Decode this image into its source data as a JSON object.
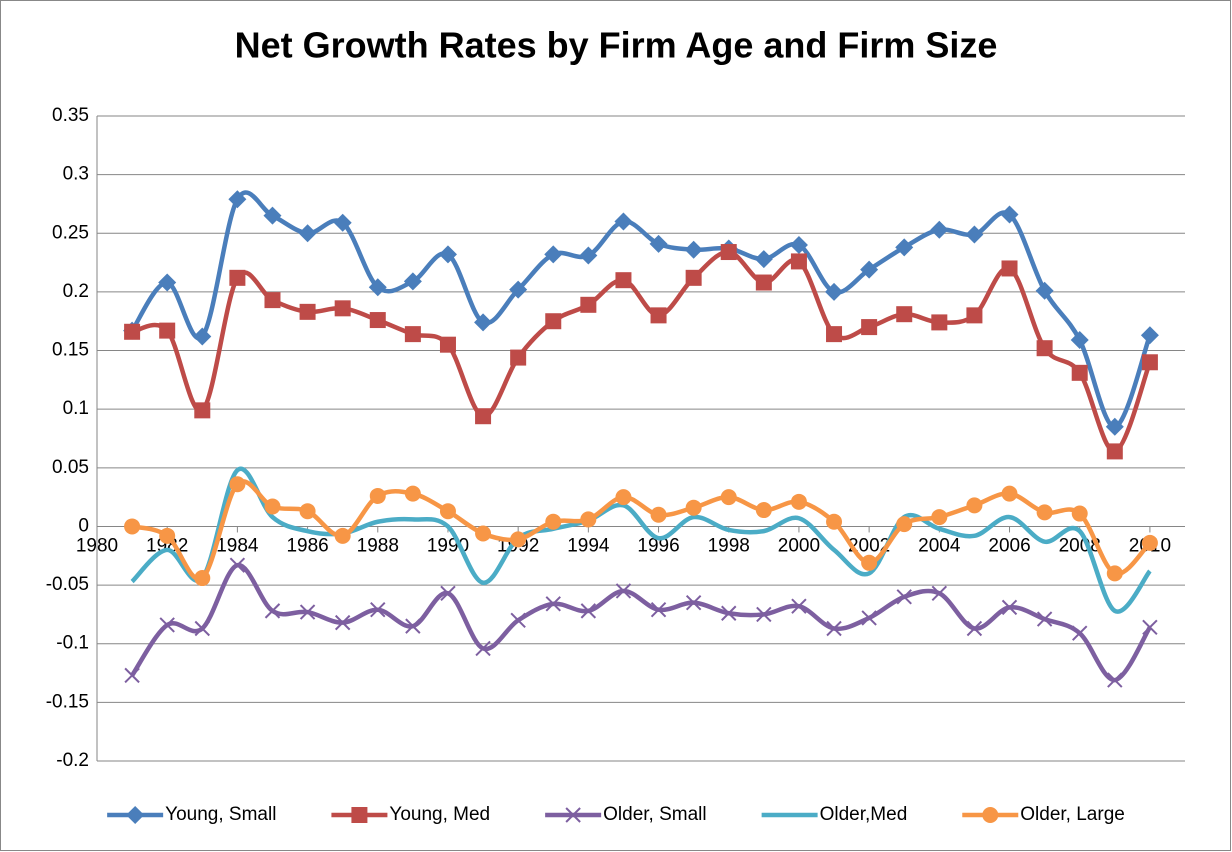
{
  "chart_data": {
    "type": "line",
    "title": "Net Growth Rates by Firm Age and Firm Size",
    "x": [
      1981,
      1982,
      1983,
      1984,
      1985,
      1986,
      1987,
      1988,
      1989,
      1990,
      1991,
      1992,
      1993,
      1994,
      1995,
      1996,
      1997,
      1998,
      1999,
      2000,
      2001,
      2002,
      2003,
      2004,
      2005,
      2006,
      2007,
      2008,
      2009,
      2010
    ],
    "series": [
      {
        "name": "Young, Small",
        "color": "#4a7ebb",
        "marker": "diamond",
        "values": [
          0.167,
          0.208,
          0.162,
          0.279,
          0.265,
          0.25,
          0.259,
          0.204,
          0.209,
          0.232,
          0.174,
          0.202,
          0.232,
          0.231,
          0.26,
          0.241,
          0.236,
          0.237,
          0.228,
          0.24,
          0.2,
          0.219,
          0.238,
          0.253,
          0.249,
          0.266,
          0.201,
          0.159,
          0.085,
          0.163
        ]
      },
      {
        "name": "Young, Med",
        "color": "#be4b48",
        "marker": "square",
        "values": [
          0.166,
          0.167,
          0.099,
          0.212,
          0.193,
          0.183,
          0.186,
          0.176,
          0.164,
          0.155,
          0.094,
          0.144,
          0.175,
          0.189,
          0.21,
          0.18,
          0.212,
          0.234,
          0.208,
          0.226,
          0.164,
          0.17,
          0.181,
          0.174,
          0.18,
          0.22,
          0.152,
          0.131,
          0.064,
          0.14
        ]
      },
      {
        "name": "Older, Small",
        "color": "#7d5fa0",
        "marker": "x",
        "values": [
          -0.127,
          -0.084,
          -0.087,
          -0.033,
          -0.072,
          -0.073,
          -0.082,
          -0.071,
          -0.085,
          -0.057,
          -0.104,
          -0.08,
          -0.066,
          -0.072,
          -0.055,
          -0.071,
          -0.065,
          -0.074,
          -0.075,
          -0.068,
          -0.087,
          -0.078,
          -0.06,
          -0.057,
          -0.087,
          -0.069,
          -0.079,
          -0.091,
          -0.131,
          -0.086
        ]
      },
      {
        "name": "Older,Med",
        "color": "#4bacc6",
        "marker": "none",
        "values": [
          -0.047,
          -0.02,
          -0.044,
          0.048,
          0.008,
          -0.004,
          -0.006,
          0.004,
          0.006,
          0.0,
          -0.048,
          -0.01,
          -0.002,
          0.005,
          0.018,
          -0.01,
          0.008,
          -0.003,
          -0.004,
          0.007,
          -0.02,
          -0.04,
          0.008,
          -0.002,
          -0.008,
          0.008,
          -0.013,
          -0.004,
          -0.072,
          -0.038
        ]
      },
      {
        "name": "Older, Large",
        "color": "#f79646",
        "marker": "circle",
        "values": [
          0.0,
          -0.008,
          -0.044,
          0.036,
          0.017,
          0.013,
          -0.008,
          0.026,
          0.028,
          0.013,
          -0.006,
          -0.011,
          0.004,
          0.006,
          0.025,
          0.01,
          0.016,
          0.025,
          0.014,
          0.021,
          0.004,
          -0.031,
          0.002,
          0.008,
          0.018,
          0.028,
          0.012,
          0.011,
          -0.04,
          -0.014
        ]
      }
    ],
    "xlim": [
      1980,
      2011
    ],
    "xticks": [
      1980,
      1982,
      1984,
      1986,
      1988,
      1990,
      1992,
      1994,
      1996,
      1998,
      2000,
      2002,
      2004,
      2006,
      2008,
      2010
    ],
    "ylim": [
      -0.2,
      0.35
    ],
    "yticks": [
      0.35,
      0.3,
      0.25,
      0.2,
      0.15,
      0.1,
      0.05,
      0,
      -0.05,
      -0.1,
      -0.15,
      -0.2
    ],
    "grid": true,
    "smooth": true,
    "legend": "bottom"
  }
}
